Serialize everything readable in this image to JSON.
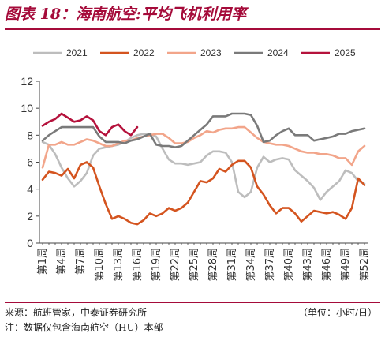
{
  "title": "图表 18：海南航空:平均飞机利用率",
  "source": "来源：航班管家，中泰证券研究所",
  "unit": "（单位：小时/日）",
  "note": "注：数据仅包含海南航空（HU）本部",
  "chart_data": {
    "type": "line",
    "title": "",
    "xlabel": "",
    "ylabel": "",
    "ylim": [
      0,
      12
    ],
    "yticks": [
      0,
      2,
      4,
      6,
      8,
      10,
      12
    ],
    "x": [
      "第1周",
      "第2周",
      "第3周",
      "第4周",
      "第5周",
      "第6周",
      "第7周",
      "第8周",
      "第9周",
      "第10周",
      "第11周",
      "第12周",
      "第13周",
      "第14周",
      "第15周",
      "第16周",
      "第17周",
      "第18周",
      "第19周",
      "第20周",
      "第21周",
      "第22周",
      "第23周",
      "第24周",
      "第25周",
      "第26周",
      "第27周",
      "第28周",
      "第29周",
      "第30周",
      "第31周",
      "第32周",
      "第33周",
      "第34周",
      "第35周",
      "第36周",
      "第37周",
      "第38周",
      "第39周",
      "第40周",
      "第41周",
      "第42周",
      "第43周",
      "第44周",
      "第45周",
      "第46周",
      "第47周",
      "第48周",
      "第49周",
      "第50周",
      "第51周",
      "第52周"
    ],
    "xtick_labels": [
      "第1周",
      "第4周",
      "第7周",
      "第10周",
      "第13周",
      "第16周",
      "第19周",
      "第22周",
      "第25周",
      "第28周",
      "第31周",
      "第34周",
      "第37周",
      "第40周",
      "第43周",
      "第46周",
      "第49周",
      "第52周"
    ],
    "legend_position": "top",
    "grid": false,
    "series": [
      {
        "name": "2021",
        "color": "#bdbdbd",
        "values": [
          7.5,
          7.3,
          6.6,
          5.6,
          4.8,
          4.2,
          4.6,
          5.2,
          6.5,
          7.0,
          7.1,
          7.2,
          7.3,
          7.5,
          7.8,
          8.0,
          8.1,
          8.1,
          7.9,
          7.0,
          6.2,
          5.9,
          5.9,
          5.8,
          5.9,
          6.0,
          6.5,
          6.8,
          6.8,
          6.7,
          6.0,
          3.8,
          3.4,
          3.8,
          5.6,
          6.4,
          6.0,
          6.2,
          6.3,
          6.2,
          5.4,
          5.0,
          4.6,
          4.1,
          3.2,
          3.8,
          4.2,
          4.6,
          5.4,
          5.2,
          4.6,
          4.4
        ]
      },
      {
        "name": "2022",
        "color": "#d4541f",
        "values": [
          4.7,
          5.3,
          5.2,
          5.0,
          5.5,
          4.8,
          5.8,
          6.0,
          5.6,
          4.2,
          2.9,
          1.8,
          2.0,
          1.8,
          1.5,
          1.4,
          1.7,
          2.2,
          2.0,
          2.2,
          2.6,
          2.4,
          2.6,
          3.0,
          3.8,
          4.6,
          4.5,
          4.8,
          5.5,
          5.3,
          5.8,
          6.1,
          6.1,
          5.6,
          4.2,
          3.6,
          2.8,
          2.2,
          2.6,
          2.6,
          2.2,
          1.6,
          2.0,
          2.4,
          2.3,
          2.2,
          2.3,
          2.1,
          1.8,
          2.6,
          4.8,
          4.3
        ]
      },
      {
        "name": "2023",
        "color": "#f2a58a",
        "values": [
          5.6,
          7.3,
          7.3,
          7.5,
          7.3,
          7.3,
          7.5,
          7.7,
          7.6,
          7.4,
          7.2,
          7.2,
          7.4,
          7.6,
          7.6,
          7.8,
          7.9,
          8.0,
          8.1,
          8.1,
          7.8,
          7.4,
          7.4,
          7.5,
          7.8,
          8.0,
          8.3,
          8.2,
          8.4,
          8.5,
          8.5,
          8.6,
          8.6,
          8.2,
          7.8,
          7.5,
          7.4,
          7.3,
          7.3,
          7.2,
          7.0,
          6.8,
          6.7,
          6.7,
          6.6,
          6.6,
          6.5,
          6.3,
          6.3,
          5.8,
          6.8,
          7.2
        ]
      },
      {
        "name": "2024",
        "color": "#7a7a7a",
        "values": [
          7.6,
          8.0,
          8.3,
          8.6,
          8.6,
          8.6,
          8.6,
          8.6,
          8.6,
          7.9,
          7.5,
          7.5,
          7.5,
          7.4,
          7.6,
          7.7,
          7.9,
          8.1,
          7.3,
          7.2,
          7.2,
          7.1,
          7.2,
          7.6,
          8.0,
          8.4,
          8.8,
          9.4,
          9.4,
          9.4,
          9.6,
          9.6,
          9.6,
          9.5,
          8.7,
          7.5,
          7.6,
          8.0,
          8.3,
          8.5,
          8.0,
          8.0,
          8.0,
          7.6,
          7.7,
          7.8,
          7.9,
          8.1,
          8.1,
          8.3,
          8.4,
          8.5
        ]
      },
      {
        "name": "2025",
        "color": "#b5123c",
        "values": [
          8.7,
          9.0,
          9.2,
          9.6,
          9.3,
          9.0,
          9.1,
          9.4,
          9.1,
          8.3,
          8.0,
          8.6,
          8.8,
          8.3,
          8.0,
          8.6,
          null,
          null,
          null,
          null,
          null,
          null,
          null,
          null,
          null,
          null,
          null,
          null,
          null,
          null,
          null,
          null,
          null,
          null,
          null,
          null,
          null,
          null,
          null,
          null,
          null,
          null,
          null,
          null,
          null,
          null,
          null,
          null,
          null,
          null,
          null,
          null
        ]
      }
    ]
  }
}
